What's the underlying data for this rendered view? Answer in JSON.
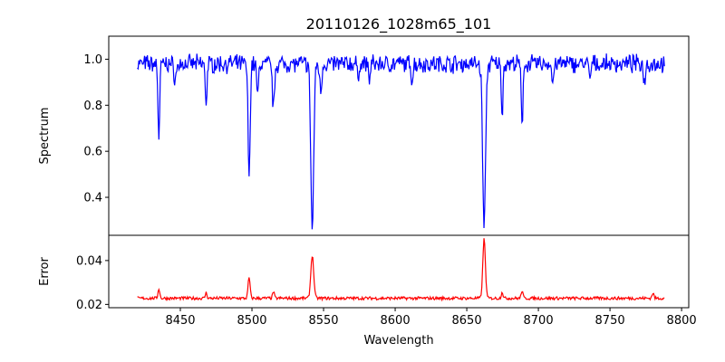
{
  "figure_title": "20110126_1028m65_101",
  "chart_data": [
    {
      "type": "line",
      "panel": "top",
      "title": "20110126_1028m65_101",
      "ylabel": "Spectrum",
      "xlabel": "",
      "xlim": [
        8400,
        8805
      ],
      "ylim": [
        0.235,
        1.1
      ],
      "yticks": [
        0.4,
        0.6,
        0.8,
        1.0
      ],
      "ytick_labels": [
        "0.4",
        "0.6",
        "0.8",
        "1.0"
      ],
      "grid": false,
      "legend": "none",
      "series": [
        {
          "color": "#0000ff",
          "x_range": [
            8420,
            8788
          ],
          "baseline": 0.98,
          "absorption_lines": [
            {
              "center": 8435,
              "depth": 0.32,
              "width": 0.6
            },
            {
              "center": 8446.5,
              "depth": 0.06,
              "width": 1.0
            },
            {
              "center": 8468,
              "depth": 0.17,
              "width": 0.6
            },
            {
              "center": 8498.0,
              "depth": 0.5,
              "width": 0.7
            },
            {
              "center": 8504,
              "depth": 0.15,
              "width": 0.6
            },
            {
              "center": 8515,
              "depth": 0.2,
              "width": 0.7
            },
            {
              "center": 8542.1,
              "depth": 0.72,
              "width": 1.0
            },
            {
              "center": 8548,
              "depth": 0.12,
              "width": 0.7
            },
            {
              "center": 8574,
              "depth": 0.06,
              "width": 0.6
            },
            {
              "center": 8582,
              "depth": 0.07,
              "width": 0.6
            },
            {
              "center": 8611.8,
              "depth": 0.07,
              "width": 0.6
            },
            {
              "center": 8662.1,
              "depth": 0.71,
              "width": 1.0
            },
            {
              "center": 8674.7,
              "depth": 0.21,
              "width": 0.6
            },
            {
              "center": 8688.6,
              "depth": 0.28,
              "width": 0.6
            },
            {
              "center": 8710,
              "depth": 0.09,
              "width": 0.6
            },
            {
              "center": 8736,
              "depth": 0.07,
              "width": 0.6
            },
            {
              "center": 8774,
              "depth": 0.08,
              "width": 0.6
            }
          ],
          "noise_amplitude": 0.03
        }
      ]
    },
    {
      "type": "line",
      "panel": "bottom",
      "title": "",
      "ylabel": "Error",
      "xlabel": "Wavelength",
      "xlim": [
        8400,
        8805
      ],
      "ylim": [
        0.0185,
        0.0515
      ],
      "yticks": [
        0.02,
        0.04
      ],
      "ytick_labels": [
        "0.02",
        "0.04"
      ],
      "xticks": [
        8450,
        8500,
        8550,
        8600,
        8650,
        8700,
        8750,
        8800
      ],
      "xtick_labels": [
        "8450",
        "8500",
        "8550",
        "8600",
        "8650",
        "8700",
        "8750",
        "8800"
      ],
      "grid": false,
      "legend": "none",
      "series": [
        {
          "color": "#ff0000",
          "x_range": [
            8420,
            8788
          ],
          "baseline": 0.0228,
          "emission_peaks": [
            {
              "center": 8435,
              "height": 0.0045,
              "width": 0.6
            },
            {
              "center": 8468,
              "height": 0.0025,
              "width": 0.6
            },
            {
              "center": 8498.0,
              "height": 0.0095,
              "width": 0.7
            },
            {
              "center": 8515,
              "height": 0.003,
              "width": 0.6
            },
            {
              "center": 8542.1,
              "height": 0.0195,
              "width": 1.0
            },
            {
              "center": 8662.1,
              "height": 0.027,
              "width": 0.9
            },
            {
              "center": 8674.7,
              "height": 0.003,
              "width": 0.6
            },
            {
              "center": 8688.6,
              "height": 0.0035,
              "width": 0.6
            },
            {
              "center": 8780,
              "height": 0.0025,
              "width": 0.6
            }
          ],
          "noise_amplitude": 0.0007
        }
      ]
    }
  ]
}
